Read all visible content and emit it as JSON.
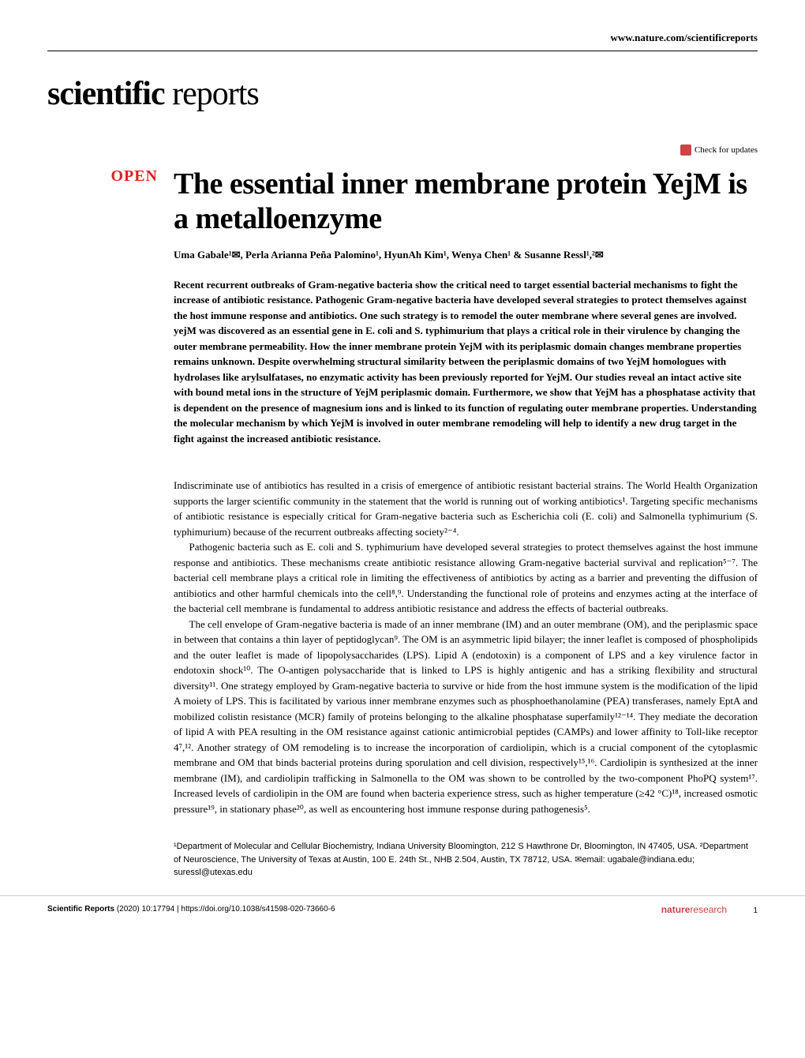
{
  "header": {
    "link": "www.nature.com/scientificreports"
  },
  "logo": {
    "bold": "scientific",
    "light": " reports"
  },
  "checkUpdates": "Check for updates",
  "openBadge": "OPEN",
  "title": "The essential inner membrane protein YejM is a metalloenzyme",
  "authors": "Uma Gabale¹✉, Perla Arianna Peña Palomino¹, HyunAh Kim¹, Wenya Chen¹ & Susanne Ressl¹,²✉",
  "abstract": "Recent recurrent outbreaks of Gram-negative bacteria show the critical need to target essential bacterial mechanisms to fight the increase of antibiotic resistance. Pathogenic Gram-negative bacteria have developed several strategies to protect themselves against the host immune response and antibiotics. One such strategy is to remodel the outer membrane where several genes are involved. yejM was discovered as an essential gene in E. coli and S. typhimurium that plays a critical role in their virulence by changing the outer membrane permeability. How the inner membrane protein YejM with its periplasmic domain changes membrane properties remains unknown. Despite overwhelming structural similarity between the periplasmic domains of two YejM homologues with hydrolases like arylsulfatases, no enzymatic activity has been previously reported for YejM. Our studies reveal an intact active site with bound metal ions in the structure of YejM periplasmic domain. Furthermore, we show that YejM has a phosphatase activity that is dependent on the presence of magnesium ions and is linked to its function of regulating outer membrane properties. Understanding the molecular mechanism by which YejM is involved in outer membrane remodeling will help to identify a new drug target in the fight against the increased antibiotic resistance.",
  "paragraphs": {
    "p1": "Indiscriminate use of antibiotics has resulted in a crisis of emergence of antibiotic resistant bacterial strains. The World Health Organization supports the larger scientific community in the statement that the world is running out of working antibiotics¹. Targeting specific mechanisms of antibiotic resistance is especially critical for Gram-negative bacteria such as Escherichia coli (E. coli) and Salmonella typhimurium (S. typhimurium) because of the recurrent outbreaks affecting society²⁻⁴.",
    "p2": "Pathogenic bacteria such as E. coli and S. typhimurium have developed several strategies to protect themselves against the host immune response and antibiotics. These mechanisms create antibiotic resistance allowing Gram-negative bacterial survival and replication⁵⁻⁷. The bacterial cell membrane plays a critical role in limiting the effectiveness of antibiotics by acting as a barrier and preventing the diffusion of antibiotics and other harmful chemicals into the cell⁸,⁹. Understanding the functional role of proteins and enzymes acting at the interface of the bacterial cell membrane is fundamental to address antibiotic resistance and address the effects of bacterial outbreaks.",
    "p3": "The cell envelope of Gram-negative bacteria is made of an inner membrane (IM) and an outer membrane (OM), and the periplasmic space in between that contains a thin layer of peptidoglycan⁹. The OM is an asymmetric lipid bilayer; the inner leaflet is composed of phospholipids and the outer leaflet is made of lipopolysaccharides (LPS). Lipid A (endotoxin) is a component of LPS and a key virulence factor in endotoxin shock¹⁰. The O-antigen polysaccharide that is linked to LPS is highly antigenic and has a striking flexibility and structural diversity¹¹. One strategy employed by Gram-negative bacteria to survive or hide from the host immune system is the modification of the lipid A moiety of LPS. This is facilitated by various inner membrane enzymes such as phosphoethanolamine (PEA) transferases, namely EptA and mobilized colistin resistance (MCR) family of proteins belonging to the alkaline phosphatase superfamily¹²⁻¹⁴. They mediate the decoration of lipid A with PEA resulting in the OM resistance against cationic antimicrobial peptides (CAMPs) and lower affinity to Toll-like receptor 4⁷,¹². Another strategy of OM remodeling is to increase the incorporation of cardiolipin, which is a crucial component of the cytoplasmic membrane and OM that binds bacterial proteins during sporulation and cell division, respectively¹⁵,¹⁶. Cardiolipin is synthesized at the inner membrane (IM), and cardiolipin trafficking in Salmonella to the OM was shown to be controlled by the two-component PhoPQ system¹⁷. Increased levels of cardiolipin in the OM are found when bacteria experience stress, such as higher temperature (≥42 °C)¹⁸, increased osmotic pressure¹⁹, in stationary phase²⁰, as well as encountering host immune response during pathogenesis⁵."
  },
  "affiliations": "¹Department of Molecular and Cellular Biochemistry, Indiana University Bloomington, 212 S Hawthrone Dr, Bloomington, IN 47405, USA. ²Department of Neuroscience, The University of Texas at Austin, 100 E. 24th St., NHB 2.504, Austin, TX 78712, USA. ✉email: ugabale@indiana.edu; suressl@utexas.edu",
  "footer": {
    "journal": "Scientific Reports",
    "citation": "(2020) 10:17794",
    "doi": "| https://doi.org/10.1038/s41598-020-73660-6",
    "publisher_bold": "nature",
    "publisher_light": "research",
    "pageNum": "1"
  }
}
